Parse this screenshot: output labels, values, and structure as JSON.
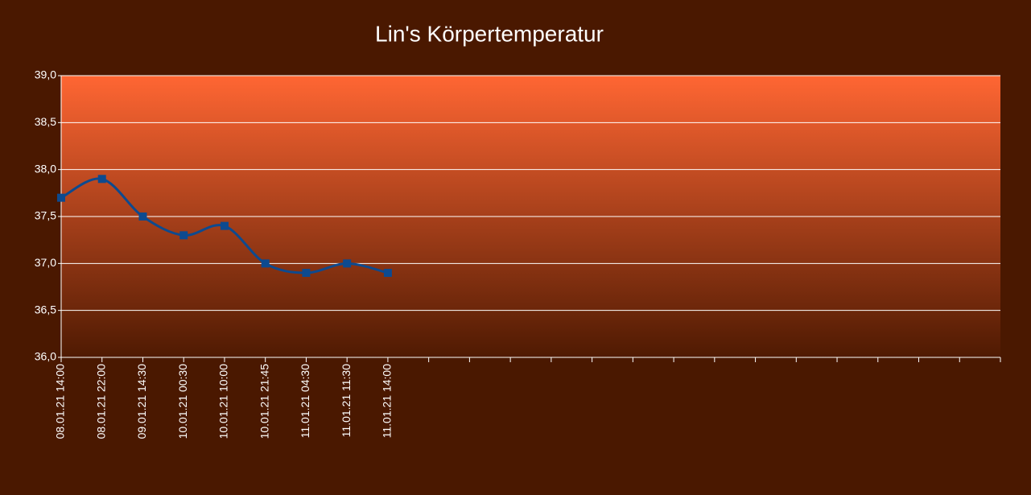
{
  "chart_data": {
    "type": "line",
    "title": "Lin's Körpertemperatur",
    "categories": [
      "08.01.21 14:00",
      "08.01.21 22:00",
      "09.01.21 14:30",
      "10.01.21 00:30",
      "10.01.21 10:00",
      "10.01.21 21:45",
      "11.01.21 04:30",
      "11.01.21 11:30",
      "11.01.21 14:00",
      null,
      null,
      null,
      null,
      null,
      null,
      null,
      null,
      null,
      null,
      null,
      null,
      null,
      null,
      null
    ],
    "values": [
      37.7,
      37.9,
      37.5,
      37.3,
      37.4,
      37.0,
      36.9,
      37.0,
      36.9,
      null,
      null,
      null,
      null,
      null,
      null,
      null,
      null,
      null,
      null,
      null,
      null,
      null,
      null,
      null
    ],
    "color": "#0d4a8f",
    "ylim": [
      36,
      39
    ],
    "yticks": [
      {
        "value": 36,
        "label": "36,0"
      },
      {
        "value": 36.5,
        "label": "36,5"
      },
      {
        "value": 37,
        "label": "37,0"
      },
      {
        "value": 37.5,
        "label": "37,5"
      },
      {
        "value": 38,
        "label": "38,0"
      },
      {
        "value": 38.5,
        "label": "38,5"
      },
      {
        "value": 39,
        "label": "39,0"
      }
    ],
    "grid": true,
    "smooth": true
  }
}
